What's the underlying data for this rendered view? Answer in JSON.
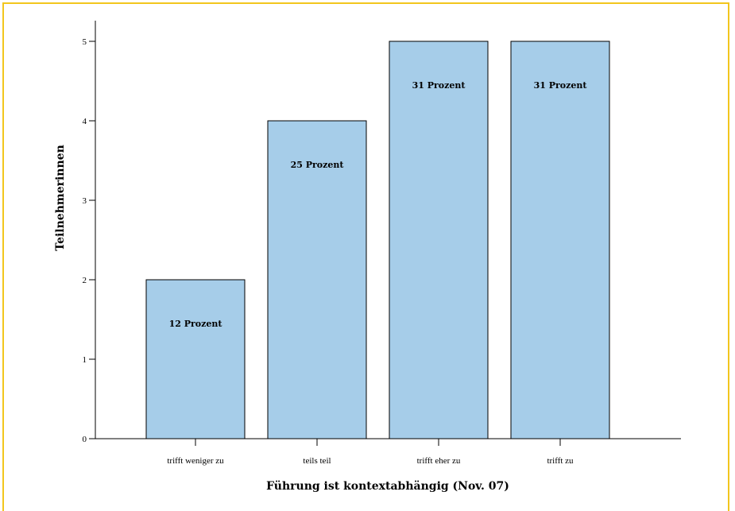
{
  "chart_data": {
    "type": "bar",
    "categories": [
      "trifft weniger zu",
      "teils teil",
      "trifft eher zu",
      "trifft zu"
    ],
    "values": [
      2,
      4,
      5,
      5
    ],
    "data_labels": [
      "12 Prozent",
      "25 Prozent",
      "31 Prozent",
      "31 Prozent"
    ],
    "title": "",
    "xlabel": "Führung ist kontextabhängig (Nov. 07)",
    "ylabel": "Teilnehmerinnen",
    "ylim": [
      0,
      5
    ],
    "yticks": [
      "0",
      "1",
      "2",
      "3",
      "4",
      "5"
    ],
    "grid": false,
    "bar_color": "#a6cde9",
    "frame_color": "#f2c61e"
  }
}
